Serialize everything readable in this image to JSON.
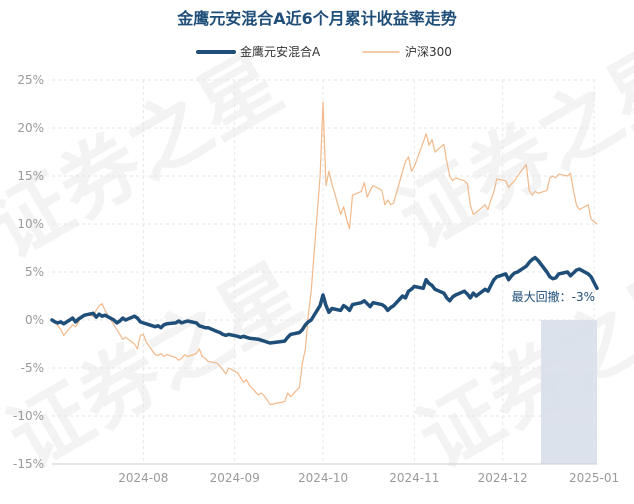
{
  "chart_data": {
    "type": "line",
    "title": "金鹰元安混合A近6个月累计收益率走势",
    "watermark": "证券之星",
    "ylim": [
      -15,
      25
    ],
    "yticks": [
      -15,
      -10,
      -5,
      0,
      5,
      10,
      15,
      20,
      25
    ],
    "ytick_labels": [
      "-15%",
      "-10%",
      "-5%",
      "0%",
      "5%",
      "10%",
      "15%",
      "20%",
      "25%"
    ],
    "xlim": [
      "2024-07-01",
      "2025-01-02"
    ],
    "xticks": [
      "2024-08-01",
      "2024-09-01",
      "2024-10-01",
      "2024-11-01",
      "2024-12-01",
      "2025-01-01"
    ],
    "xtick_labels": [
      "2024-08",
      "2024-09",
      "2024-10",
      "2024-11",
      "2024-12",
      "2025-01"
    ],
    "legend_position": "top-center",
    "grid": true,
    "annotation": {
      "text": "最大回撤：-3%",
      "start": "2024-12-14",
      "end": "2025-01-02",
      "color": "#d5dde7"
    },
    "series": [
      {
        "name": "金鹰元安混合A",
        "color": "#1f4e79",
        "width": 3.5,
        "points": [
          [
            "2024-07-01",
            0.0
          ],
          [
            "2024-07-02",
            -0.2
          ],
          [
            "2024-07-03",
            -0.3
          ],
          [
            "2024-07-04",
            -0.2
          ],
          [
            "2024-07-05",
            -0.4
          ],
          [
            "2024-07-08",
            0.2
          ],
          [
            "2024-07-09",
            -0.2
          ],
          [
            "2024-07-10",
            0.1
          ],
          [
            "2024-07-11",
            0.3
          ],
          [
            "2024-07-12",
            0.5
          ],
          [
            "2024-07-15",
            0.7
          ],
          [
            "2024-07-16",
            0.3
          ],
          [
            "2024-07-17",
            0.6
          ],
          [
            "2024-07-18",
            0.4
          ],
          [
            "2024-07-19",
            0.5
          ],
          [
            "2024-07-22",
            0.0
          ],
          [
            "2024-07-23",
            -0.3
          ],
          [
            "2024-07-24",
            -0.1
          ],
          [
            "2024-07-25",
            0.2
          ],
          [
            "2024-07-26",
            0.0
          ],
          [
            "2024-07-29",
            0.4
          ],
          [
            "2024-07-30",
            0.2
          ],
          [
            "2024-07-31",
            -0.2
          ],
          [
            "2024-08-01",
            -0.3
          ],
          [
            "2024-08-02",
            -0.4
          ],
          [
            "2024-08-05",
            -0.7
          ],
          [
            "2024-08-06",
            -0.6
          ],
          [
            "2024-08-07",
            -0.8
          ],
          [
            "2024-08-08",
            -0.5
          ],
          [
            "2024-08-09",
            -0.4
          ],
          [
            "2024-08-12",
            -0.3
          ],
          [
            "2024-08-13",
            -0.1
          ],
          [
            "2024-08-14",
            -0.3
          ],
          [
            "2024-08-15",
            -0.2
          ],
          [
            "2024-08-16",
            -0.1
          ],
          [
            "2024-08-19",
            -0.3
          ],
          [
            "2024-08-20",
            -0.6
          ],
          [
            "2024-08-21",
            -0.7
          ],
          [
            "2024-08-22",
            -0.8
          ],
          [
            "2024-08-23",
            -0.8
          ],
          [
            "2024-08-26",
            -1.2
          ],
          [
            "2024-08-27",
            -1.3
          ],
          [
            "2024-08-28",
            -1.5
          ],
          [
            "2024-08-29",
            -1.6
          ],
          [
            "2024-08-30",
            -1.5
          ],
          [
            "2024-09-02",
            -1.7
          ],
          [
            "2024-09-03",
            -1.8
          ],
          [
            "2024-09-04",
            -1.7
          ],
          [
            "2024-09-05",
            -1.8
          ],
          [
            "2024-09-06",
            -1.9
          ],
          [
            "2024-09-09",
            -2.0
          ],
          [
            "2024-09-10",
            -2.1
          ],
          [
            "2024-09-11",
            -2.2
          ],
          [
            "2024-09-12",
            -2.3
          ],
          [
            "2024-09-13",
            -2.4
          ],
          [
            "2024-09-18",
            -2.2
          ],
          [
            "2024-09-19",
            -1.8
          ],
          [
            "2024-09-20",
            -1.5
          ],
          [
            "2024-09-23",
            -1.3
          ],
          [
            "2024-09-24",
            -1.0
          ],
          [
            "2024-09-25",
            -0.5
          ],
          [
            "2024-09-26",
            -0.2
          ],
          [
            "2024-09-27",
            0.0
          ],
          [
            "2024-09-30",
            1.5
          ],
          [
            "2024-10-01",
            2.6
          ],
          [
            "2024-10-02",
            1.5
          ],
          [
            "2024-10-03",
            0.8
          ],
          [
            "2024-10-04",
            1.2
          ],
          [
            "2024-10-07",
            1.0
          ],
          [
            "2024-10-08",
            1.5
          ],
          [
            "2024-10-09",
            1.3
          ],
          [
            "2024-10-10",
            1.0
          ],
          [
            "2024-10-11",
            1.6
          ],
          [
            "2024-10-14",
            1.8
          ],
          [
            "2024-10-15",
            2.0
          ],
          [
            "2024-10-16",
            1.7
          ],
          [
            "2024-10-17",
            1.4
          ],
          [
            "2024-10-18",
            1.8
          ],
          [
            "2024-10-21",
            1.6
          ],
          [
            "2024-10-22",
            1.4
          ],
          [
            "2024-10-23",
            1.0
          ],
          [
            "2024-10-24",
            1.3
          ],
          [
            "2024-10-25",
            1.5
          ],
          [
            "2024-10-28",
            2.5
          ],
          [
            "2024-10-29",
            2.3
          ],
          [
            "2024-10-30",
            3.0
          ],
          [
            "2024-10-31",
            3.2
          ],
          [
            "2024-11-01",
            3.5
          ],
          [
            "2024-11-04",
            3.3
          ],
          [
            "2024-11-05",
            4.2
          ],
          [
            "2024-11-06",
            3.8
          ],
          [
            "2024-11-07",
            3.6
          ],
          [
            "2024-11-08",
            3.2
          ],
          [
            "2024-11-11",
            2.8
          ],
          [
            "2024-11-12",
            2.3
          ],
          [
            "2024-11-13",
            2.0
          ],
          [
            "2024-11-14",
            2.4
          ],
          [
            "2024-11-15",
            2.6
          ],
          [
            "2024-11-18",
            3.0
          ],
          [
            "2024-11-19",
            2.7
          ],
          [
            "2024-11-20",
            2.3
          ],
          [
            "2024-11-21",
            2.8
          ],
          [
            "2024-11-22",
            2.5
          ],
          [
            "2024-11-25",
            3.2
          ],
          [
            "2024-11-26",
            3.0
          ],
          [
            "2024-11-27",
            3.6
          ],
          [
            "2024-11-28",
            4.2
          ],
          [
            "2024-11-29",
            4.5
          ],
          [
            "2024-12-02",
            4.8
          ],
          [
            "2024-12-03",
            4.2
          ],
          [
            "2024-12-04",
            4.6
          ],
          [
            "2024-12-05",
            4.9
          ],
          [
            "2024-12-06",
            5.0
          ],
          [
            "2024-12-09",
            5.6
          ],
          [
            "2024-12-10",
            6.0
          ],
          [
            "2024-12-11",
            6.3
          ],
          [
            "2024-12-12",
            6.5
          ],
          [
            "2024-12-13",
            6.2
          ],
          [
            "2024-12-16",
            5.0
          ],
          [
            "2024-12-17",
            4.5
          ],
          [
            "2024-12-18",
            4.3
          ],
          [
            "2024-12-19",
            4.4
          ],
          [
            "2024-12-20",
            4.8
          ],
          [
            "2024-12-23",
            5.0
          ],
          [
            "2024-12-24",
            4.6
          ],
          [
            "2024-12-25",
            4.9
          ],
          [
            "2024-12-26",
            5.2
          ],
          [
            "2024-12-27",
            5.3
          ],
          [
            "2024-12-30",
            4.8
          ],
          [
            "2024-12-31",
            4.5
          ],
          [
            "2025-01-02",
            3.3
          ]
        ]
      },
      {
        "name": "沪深300",
        "color": "#f2b98a",
        "width": 1.2,
        "points": [
          [
            "2024-07-01",
            0.0
          ],
          [
            "2024-07-02",
            -0.3
          ],
          [
            "2024-07-03",
            -0.6
          ],
          [
            "2024-07-04",
            -1.0
          ],
          [
            "2024-07-05",
            -1.6
          ],
          [
            "2024-07-08",
            -0.5
          ],
          [
            "2024-07-09",
            -0.7
          ],
          [
            "2024-07-10",
            -0.2
          ],
          [
            "2024-07-11",
            0.3
          ],
          [
            "2024-07-12",
            0.6
          ],
          [
            "2024-07-15",
            0.4
          ],
          [
            "2024-07-16",
            1.0
          ],
          [
            "2024-07-17",
            1.5
          ],
          [
            "2024-07-18",
            1.7
          ],
          [
            "2024-07-19",
            1.0
          ],
          [
            "2024-07-22",
            -0.5
          ],
          [
            "2024-07-23",
            -1.0
          ],
          [
            "2024-07-24",
            -1.5
          ],
          [
            "2024-07-25",
            -2.0
          ],
          [
            "2024-07-26",
            -1.8
          ],
          [
            "2024-07-29",
            -2.5
          ],
          [
            "2024-07-30",
            -3.0
          ],
          [
            "2024-07-31",
            -1.6
          ],
          [
            "2024-08-01",
            -1.5
          ],
          [
            "2024-08-02",
            -2.3
          ],
          [
            "2024-08-05",
            -3.6
          ],
          [
            "2024-08-06",
            -3.7
          ],
          [
            "2024-08-07",
            -3.5
          ],
          [
            "2024-08-08",
            -3.8
          ],
          [
            "2024-08-09",
            -3.6
          ],
          [
            "2024-08-12",
            -3.9
          ],
          [
            "2024-08-13",
            -4.2
          ],
          [
            "2024-08-14",
            -4.0
          ],
          [
            "2024-08-15",
            -3.6
          ],
          [
            "2024-08-16",
            -3.8
          ],
          [
            "2024-08-19",
            -3.5
          ],
          [
            "2024-08-20",
            -3.0
          ],
          [
            "2024-08-21",
            -3.8
          ],
          [
            "2024-08-22",
            -4.0
          ],
          [
            "2024-08-23",
            -4.3
          ],
          [
            "2024-08-26",
            -4.5
          ],
          [
            "2024-08-27",
            -4.8
          ],
          [
            "2024-08-28",
            -5.2
          ],
          [
            "2024-08-29",
            -5.6
          ],
          [
            "2024-08-30",
            -5.0
          ],
          [
            "2024-09-02",
            -5.5
          ],
          [
            "2024-09-03",
            -6.0
          ],
          [
            "2024-09-04",
            -6.5
          ],
          [
            "2024-09-05",
            -6.2
          ],
          [
            "2024-09-06",
            -6.8
          ],
          [
            "2024-09-09",
            -7.8
          ],
          [
            "2024-09-10",
            -7.6
          ],
          [
            "2024-09-11",
            -7.9
          ],
          [
            "2024-09-12",
            -8.3
          ],
          [
            "2024-09-13",
            -8.8
          ],
          [
            "2024-09-18",
            -8.5
          ],
          [
            "2024-09-19",
            -7.6
          ],
          [
            "2024-09-20",
            -8.0
          ],
          [
            "2024-09-23",
            -7.0
          ],
          [
            "2024-09-24",
            -4.5
          ],
          [
            "2024-09-25",
            -3.0
          ],
          [
            "2024-09-26",
            0.5
          ],
          [
            "2024-09-27",
            3.0
          ],
          [
            "2024-09-30",
            15.0
          ],
          [
            "2024-10-01",
            22.7
          ],
          [
            "2024-10-02",
            14.0
          ],
          [
            "2024-10-03",
            15.5
          ],
          [
            "2024-10-04",
            14.2
          ],
          [
            "2024-10-07",
            11.0
          ],
          [
            "2024-10-08",
            11.8
          ],
          [
            "2024-10-09",
            10.5
          ],
          [
            "2024-10-10",
            9.5
          ],
          [
            "2024-10-11",
            13.0
          ],
          [
            "2024-10-14",
            13.4
          ],
          [
            "2024-10-15",
            14.3
          ],
          [
            "2024-10-16",
            12.8
          ],
          [
            "2024-10-17",
            13.5
          ],
          [
            "2024-10-18",
            14.0
          ],
          [
            "2024-10-21",
            13.5
          ],
          [
            "2024-10-22",
            12.0
          ],
          [
            "2024-10-23",
            12.5
          ],
          [
            "2024-10-24",
            12.0
          ],
          [
            "2024-10-25",
            12.2
          ],
          [
            "2024-10-28",
            15.5
          ],
          [
            "2024-10-29",
            16.5
          ],
          [
            "2024-10-30",
            17.0
          ],
          [
            "2024-10-31",
            15.5
          ],
          [
            "2024-11-01",
            16.0
          ],
          [
            "2024-11-04",
            18.5
          ],
          [
            "2024-11-05",
            19.4
          ],
          [
            "2024-11-06",
            18.2
          ],
          [
            "2024-11-07",
            18.8
          ],
          [
            "2024-11-08",
            17.5
          ],
          [
            "2024-11-11",
            18.3
          ],
          [
            "2024-11-12",
            16.5
          ],
          [
            "2024-11-13",
            15.0
          ],
          [
            "2024-11-14",
            14.5
          ],
          [
            "2024-11-15",
            14.8
          ],
          [
            "2024-11-18",
            14.5
          ],
          [
            "2024-11-19",
            14.2
          ],
          [
            "2024-11-20",
            12.0
          ],
          [
            "2024-11-21",
            11.0
          ],
          [
            "2024-11-22",
            11.2
          ],
          [
            "2024-11-25",
            12.0
          ],
          [
            "2024-11-26",
            11.5
          ],
          [
            "2024-11-27",
            12.5
          ],
          [
            "2024-11-28",
            13.4
          ],
          [
            "2024-11-29",
            14.7
          ],
          [
            "2024-12-02",
            14.5
          ],
          [
            "2024-12-03",
            13.8
          ],
          [
            "2024-12-04",
            14.2
          ],
          [
            "2024-12-05",
            14.5
          ],
          [
            "2024-12-06",
            15.0
          ],
          [
            "2024-12-09",
            16.2
          ],
          [
            "2024-12-10",
            13.5
          ],
          [
            "2024-12-11",
            13.0
          ],
          [
            "2024-12-12",
            13.4
          ],
          [
            "2024-12-13",
            13.2
          ],
          [
            "2024-12-16",
            13.5
          ],
          [
            "2024-12-17",
            14.8
          ],
          [
            "2024-12-18",
            15.0
          ],
          [
            "2024-12-19",
            14.8
          ],
          [
            "2024-12-20",
            15.2
          ],
          [
            "2024-12-23",
            15.0
          ],
          [
            "2024-12-24",
            15.3
          ],
          [
            "2024-12-25",
            13.5
          ],
          [
            "2024-12-26",
            12.0
          ],
          [
            "2024-12-27",
            11.5
          ],
          [
            "2024-12-30",
            12.0
          ],
          [
            "2024-12-31",
            10.5
          ],
          [
            "2025-01-02",
            10.0
          ]
        ]
      }
    ]
  }
}
